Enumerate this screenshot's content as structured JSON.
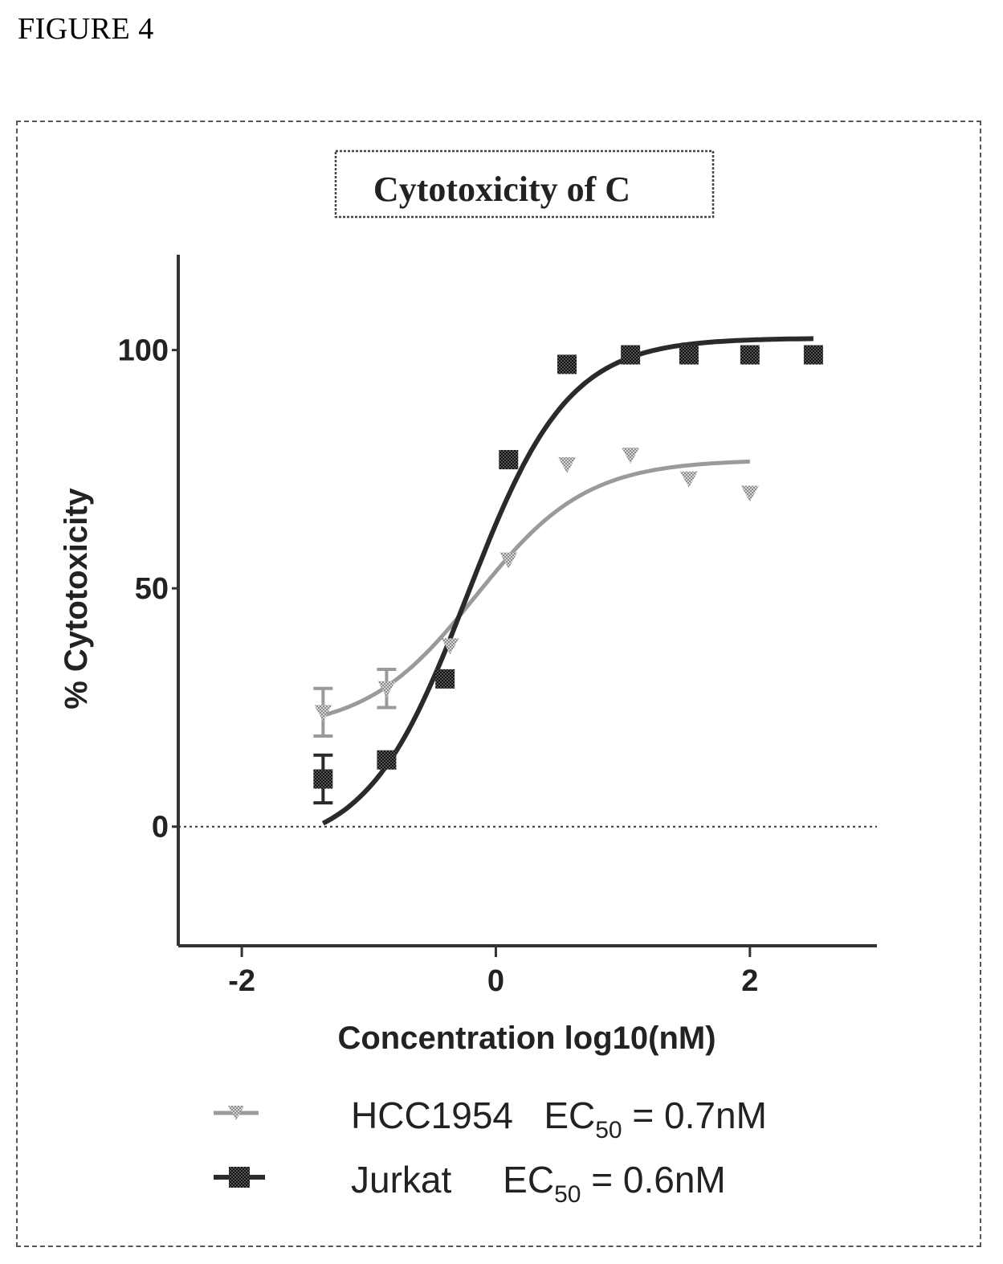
{
  "figure_label": "FIGURE 4",
  "colors": {
    "hcc1954": "#9a9a9a",
    "jurkat": "#2a2a2a",
    "axis": "#333333"
  },
  "chart_data": {
    "type": "scatter",
    "title": "Cytotoxicity of C",
    "xlabel": "Concentration log10(nM)",
    "ylabel": "% Cytotoxicity",
    "xlim": [
      -2.5,
      3.0
    ],
    "ylim": [
      -25,
      120
    ],
    "xticks": [
      -2,
      0,
      2
    ],
    "yticks": [
      0,
      50,
      100
    ],
    "xtick_labels": [
      "-2",
      "0",
      "2"
    ],
    "ytick_labels": [
      "0",
      "50",
      "100"
    ],
    "zero_reference_line": 0,
    "legend": {
      "position": "bottom",
      "entries": [
        {
          "series": "HCC1954",
          "text_pre": "HCC1954   EC",
          "subscript": "50",
          "text_post": " = 0.7nM"
        },
        {
          "series": "Jurkat",
          "text_pre": "Jurkat     EC",
          "subscript": "50",
          "text_post": " = 0.6nM"
        }
      ]
    },
    "series": [
      {
        "name": "HCC1954",
        "marker": "triangle-down",
        "ec50_nM": 0.7,
        "fit": {
          "bottom": 20,
          "top": 77,
          "hill": 1.0
        },
        "points": [
          {
            "x": -1.36,
            "y": 24,
            "err": 5
          },
          {
            "x": -0.86,
            "y": 29,
            "err": 4
          },
          {
            "x": -0.36,
            "y": 38,
            "err": 0
          },
          {
            "x": 0.1,
            "y": 56,
            "err": 0
          },
          {
            "x": 0.56,
            "y": 76,
            "err": 0
          },
          {
            "x": 1.06,
            "y": 78,
            "err": 0
          },
          {
            "x": 1.52,
            "y": 73,
            "err": 0
          },
          {
            "x": 2.0,
            "y": 70,
            "err": 0
          }
        ]
      },
      {
        "name": "Jurkat",
        "marker": "square",
        "ec50_nM": 0.6,
        "fit": {
          "bottom": -5,
          "top": 102.5,
          "hill": 1.1
        },
        "points": [
          {
            "x": -1.36,
            "y": 10,
            "err": 5
          },
          {
            "x": -0.86,
            "y": 14,
            "err": 0
          },
          {
            "x": -0.4,
            "y": 31,
            "err": 0
          },
          {
            "x": 0.1,
            "y": 77,
            "err": 0
          },
          {
            "x": 0.56,
            "y": 97,
            "err": 0
          },
          {
            "x": 1.06,
            "y": 99,
            "err": 0
          },
          {
            "x": 1.52,
            "y": 99,
            "err": 0
          },
          {
            "x": 2.0,
            "y": 99,
            "err": 0
          },
          {
            "x": 2.5,
            "y": 99,
            "err": 0
          }
        ]
      }
    ]
  }
}
